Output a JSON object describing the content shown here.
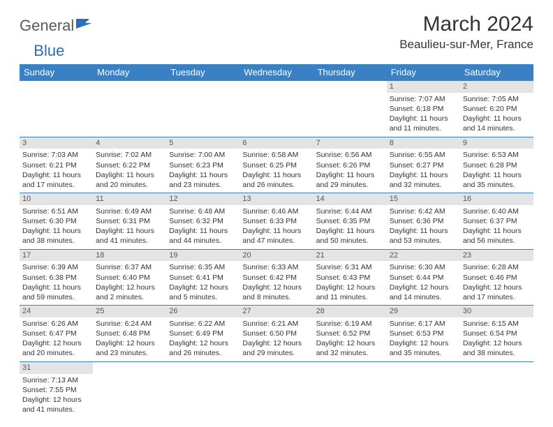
{
  "logo": {
    "text1": "General",
    "text2": "Blue"
  },
  "title": "March 2024",
  "location": "Beaulieu-sur-Mer, France",
  "colors": {
    "header_bg": "#3a80c4",
    "header_text": "#ffffff",
    "daynum_bg": "#e4e4e4",
    "border": "#3a80c4",
    "logo_gray": "#5a5a5a",
    "logo_blue": "#2a6db8"
  },
  "day_headers": [
    "Sunday",
    "Monday",
    "Tuesday",
    "Wednesday",
    "Thursday",
    "Friday",
    "Saturday"
  ],
  "weeks": [
    [
      null,
      null,
      null,
      null,
      null,
      {
        "n": "1",
        "sunrise": "7:07 AM",
        "sunset": "6:18 PM",
        "dl": "11 hours and 11 minutes."
      },
      {
        "n": "2",
        "sunrise": "7:05 AM",
        "sunset": "6:20 PM",
        "dl": "11 hours and 14 minutes."
      }
    ],
    [
      {
        "n": "3",
        "sunrise": "7:03 AM",
        "sunset": "6:21 PM",
        "dl": "11 hours and 17 minutes."
      },
      {
        "n": "4",
        "sunrise": "7:02 AM",
        "sunset": "6:22 PM",
        "dl": "11 hours and 20 minutes."
      },
      {
        "n": "5",
        "sunrise": "7:00 AM",
        "sunset": "6:23 PM",
        "dl": "11 hours and 23 minutes."
      },
      {
        "n": "6",
        "sunrise": "6:58 AM",
        "sunset": "6:25 PM",
        "dl": "11 hours and 26 minutes."
      },
      {
        "n": "7",
        "sunrise": "6:56 AM",
        "sunset": "6:26 PM",
        "dl": "11 hours and 29 minutes."
      },
      {
        "n": "8",
        "sunrise": "6:55 AM",
        "sunset": "6:27 PM",
        "dl": "11 hours and 32 minutes."
      },
      {
        "n": "9",
        "sunrise": "6:53 AM",
        "sunset": "6:28 PM",
        "dl": "11 hours and 35 minutes."
      }
    ],
    [
      {
        "n": "10",
        "sunrise": "6:51 AM",
        "sunset": "6:30 PM",
        "dl": "11 hours and 38 minutes."
      },
      {
        "n": "11",
        "sunrise": "6:49 AM",
        "sunset": "6:31 PM",
        "dl": "11 hours and 41 minutes."
      },
      {
        "n": "12",
        "sunrise": "6:48 AM",
        "sunset": "6:32 PM",
        "dl": "11 hours and 44 minutes."
      },
      {
        "n": "13",
        "sunrise": "6:46 AM",
        "sunset": "6:33 PM",
        "dl": "11 hours and 47 minutes."
      },
      {
        "n": "14",
        "sunrise": "6:44 AM",
        "sunset": "6:35 PM",
        "dl": "11 hours and 50 minutes."
      },
      {
        "n": "15",
        "sunrise": "6:42 AM",
        "sunset": "6:36 PM",
        "dl": "11 hours and 53 minutes."
      },
      {
        "n": "16",
        "sunrise": "6:40 AM",
        "sunset": "6:37 PM",
        "dl": "11 hours and 56 minutes."
      }
    ],
    [
      {
        "n": "17",
        "sunrise": "6:39 AM",
        "sunset": "6:38 PM",
        "dl": "11 hours and 59 minutes."
      },
      {
        "n": "18",
        "sunrise": "6:37 AM",
        "sunset": "6:40 PM",
        "dl": "12 hours and 2 minutes."
      },
      {
        "n": "19",
        "sunrise": "6:35 AM",
        "sunset": "6:41 PM",
        "dl": "12 hours and 5 minutes."
      },
      {
        "n": "20",
        "sunrise": "6:33 AM",
        "sunset": "6:42 PM",
        "dl": "12 hours and 8 minutes."
      },
      {
        "n": "21",
        "sunrise": "6:31 AM",
        "sunset": "6:43 PM",
        "dl": "12 hours and 11 minutes."
      },
      {
        "n": "22",
        "sunrise": "6:30 AM",
        "sunset": "6:44 PM",
        "dl": "12 hours and 14 minutes."
      },
      {
        "n": "23",
        "sunrise": "6:28 AM",
        "sunset": "6:46 PM",
        "dl": "12 hours and 17 minutes."
      }
    ],
    [
      {
        "n": "24",
        "sunrise": "6:26 AM",
        "sunset": "6:47 PM",
        "dl": "12 hours and 20 minutes."
      },
      {
        "n": "25",
        "sunrise": "6:24 AM",
        "sunset": "6:48 PM",
        "dl": "12 hours and 23 minutes."
      },
      {
        "n": "26",
        "sunrise": "6:22 AM",
        "sunset": "6:49 PM",
        "dl": "12 hours and 26 minutes."
      },
      {
        "n": "27",
        "sunrise": "6:21 AM",
        "sunset": "6:50 PM",
        "dl": "12 hours and 29 minutes."
      },
      {
        "n": "28",
        "sunrise": "6:19 AM",
        "sunset": "6:52 PM",
        "dl": "12 hours and 32 minutes."
      },
      {
        "n": "29",
        "sunrise": "6:17 AM",
        "sunset": "6:53 PM",
        "dl": "12 hours and 35 minutes."
      },
      {
        "n": "30",
        "sunrise": "6:15 AM",
        "sunset": "6:54 PM",
        "dl": "12 hours and 38 minutes."
      }
    ],
    [
      {
        "n": "31",
        "sunrise": "7:13 AM",
        "sunset": "7:55 PM",
        "dl": "12 hours and 41 minutes."
      },
      null,
      null,
      null,
      null,
      null,
      null
    ]
  ],
  "labels": {
    "sunrise": "Sunrise: ",
    "sunset": "Sunset: ",
    "daylight": "Daylight: "
  }
}
